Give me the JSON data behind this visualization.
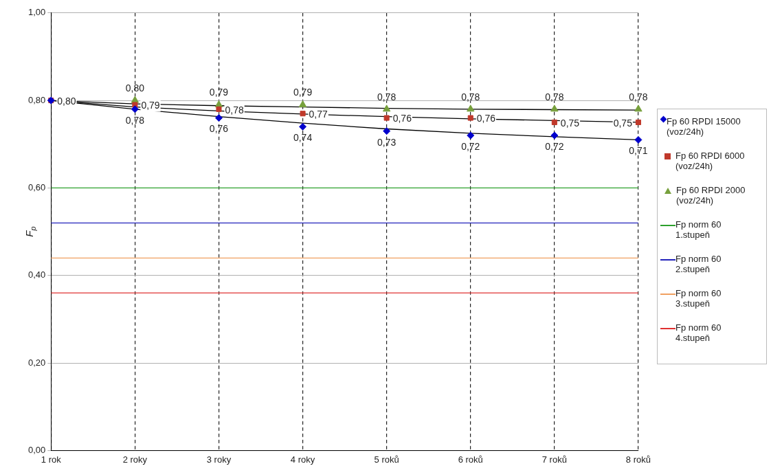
{
  "chart_data": {
    "type": "scatter",
    "ylabel": "F$_{p}$",
    "categories": [
      "1 rok",
      "2 roky",
      "3 roky",
      "4 roky",
      "5 roků",
      "6 roků",
      "7 roků",
      "8 roků"
    ],
    "ylim": [
      0,
      1
    ],
    "yticks": [
      {
        "value": 0,
        "label": "0,00"
      },
      {
        "value": 0.2,
        "label": "0,20"
      },
      {
        "value": 0.4,
        "label": "0,40"
      },
      {
        "value": 0.6,
        "label": "0,60"
      },
      {
        "value": 0.8,
        "label": "0,80"
      },
      {
        "value": 1,
        "label": "1,00"
      }
    ],
    "grid": true,
    "legend": "right",
    "series": [
      {
        "name": "Fp 60  RPDI 15000 (voz/24h)",
        "color": "#0000cc",
        "marker": "diamond",
        "values": [
          0.8,
          0.78,
          0.76,
          0.74,
          0.73,
          0.72,
          0.72,
          0.71
        ],
        "value_labels": [
          null,
          "0,78",
          "0,76",
          "0,74",
          "0,73",
          "0,72",
          "0,72",
          "0,71"
        ]
      },
      {
        "name": "Fp 60  RPDI 6000 (voz/24h)",
        "color": "#c0392b",
        "marker": "square",
        "values": [
          0.8,
          0.79,
          0.78,
          0.77,
          0.76,
          0.76,
          0.75,
          0.75
        ],
        "value_labels": [
          "0,80",
          "0,79",
          "0,78",
          "0,77",
          "0,76",
          "0,76",
          "0,75",
          "0,75"
        ]
      },
      {
        "name": "Fp 60  RPDI 2000 (voz/24h)",
        "color": "#77a03c",
        "marker": "triangle",
        "values": [
          null,
          0.8,
          0.79,
          0.79,
          0.78,
          0.78,
          0.78,
          0.78
        ],
        "value_labels": [
          null,
          "0,80",
          "0,79",
          "0,79",
          "0,78",
          "0,78",
          "0,78",
          "0,78"
        ]
      },
      {
        "type": "line",
        "color": "#000000",
        "marker": "none",
        "values": [
          0.8,
          0.78,
          0.763,
          0.748,
          0.735,
          0.725,
          0.717,
          0.71
        ]
      },
      {
        "type": "line",
        "color": "#000000",
        "marker": "none",
        "values": [
          0.8,
          0.785,
          0.776,
          0.769,
          0.763,
          0.758,
          0.754,
          0.75
        ]
      },
      {
        "type": "line",
        "color": "#000000",
        "marker": "none",
        "values": [
          0.8,
          0.792,
          0.788,
          0.785,
          0.782,
          0.78,
          0.779,
          0.778
        ]
      },
      {
        "name": "Fp norm 60 1.stupeň",
        "type": "line",
        "color": "#2ca02c",
        "marker": "none",
        "values": [
          0.6,
          0.6,
          0.6,
          0.6,
          0.6,
          0.6,
          0.6,
          0.6
        ]
      },
      {
        "name": "Fp norm 60 2.stupeň",
        "type": "line",
        "color": "#2222bb",
        "marker": "none",
        "values": [
          0.52,
          0.52,
          0.52,
          0.52,
          0.52,
          0.52,
          0.52,
          0.52
        ]
      },
      {
        "name": "Fp norm 60 3.stupeň",
        "type": "line",
        "color": "#f0a060",
        "marker": "none",
        "values": [
          0.44,
          0.44,
          0.44,
          0.44,
          0.44,
          0.44,
          0.44,
          0.44
        ]
      },
      {
        "name": "Fp norm 60 4.stupeň",
        "type": "line",
        "color": "#e03030",
        "marker": "none",
        "values": [
          0.36,
          0.36,
          0.36,
          0.36,
          0.36,
          0.36,
          0.36,
          0.36
        ]
      }
    ]
  }
}
